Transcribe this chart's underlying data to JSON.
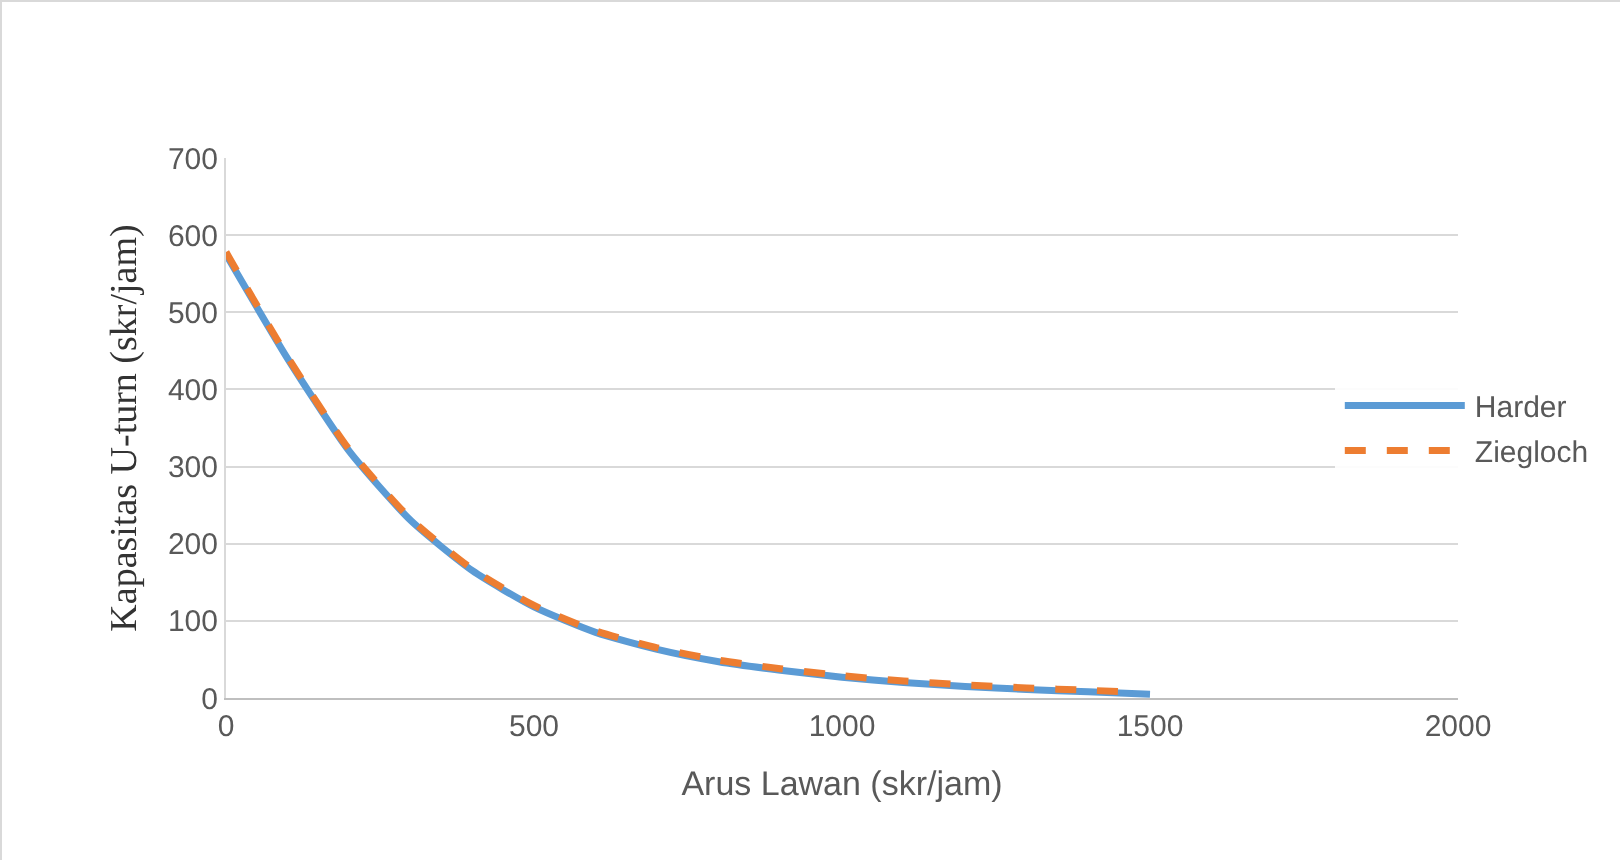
{
  "chart_data": {
    "type": "line",
    "xlabel": "Arus Lawan (skr/jam)",
    "ylabel": "Kapasitas U-turn (skr/jam)",
    "xlim": [
      0,
      2000
    ],
    "xticks": [
      0,
      500,
      1000,
      1500,
      2000
    ],
    "ylim": [
      0,
      700
    ],
    "yticks": [
      0,
      100,
      200,
      300,
      400,
      500,
      600,
      700
    ],
    "grid": "y",
    "legend": "right",
    "marker": "none",
    "series": [
      {
        "name": "Harder",
        "color": "#5b9bd5",
        "line_style": "solid",
        "x": [
          0,
          100,
          200,
          300,
          400,
          500,
          600,
          700,
          800,
          900,
          1000,
          1100,
          1200,
          1300,
          1400,
          1500
        ],
        "values": [
          575,
          440,
          320,
          230,
          165,
          118,
          85,
          63,
          47,
          36,
          27,
          20,
          15,
          11,
          8,
          5
        ]
      },
      {
        "name": "Ziegloch",
        "color": "#ed7d31",
        "line_style": "dashed",
        "x": [
          0,
          100,
          200,
          300,
          400,
          500,
          600,
          700,
          800,
          900,
          1000,
          1100,
          1200,
          1300,
          1400,
          1460
        ],
        "values": [
          578,
          442,
          322,
          232,
          167,
          120,
          87,
          65,
          49,
          38,
          29,
          22,
          17,
          13,
          10,
          8
        ]
      }
    ]
  }
}
